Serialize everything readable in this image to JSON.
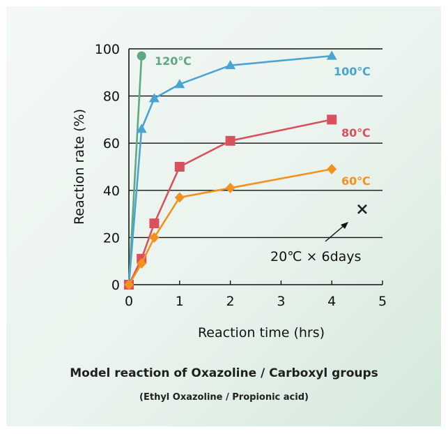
{
  "chart_data": {
    "type": "line",
    "xlabel": "Reaction time (hrs)",
    "ylabel": "Reaction rate (%)",
    "xlim": [
      0,
      5
    ],
    "ylim": [
      0,
      100
    ],
    "xticks": [
      "0",
      "1",
      "2",
      "3",
      "4",
      "5"
    ],
    "yticks": [
      "0",
      "20",
      "40",
      "60",
      "80",
      "100"
    ],
    "horizontal_grid": true,
    "series": [
      {
        "name": "120℃",
        "color": "#5fa883",
        "marker": "circle",
        "x": [
          0,
          0.25
        ],
        "y": [
          0,
          97
        ]
      },
      {
        "name": "100℃",
        "color": "#4aa3d1",
        "marker": "triangle",
        "x": [
          0,
          0.25,
          0.5,
          1,
          2,
          4
        ],
        "y": [
          0,
          66,
          79,
          85,
          93,
          97
        ]
      },
      {
        "name": "80℃",
        "color": "#d9505e",
        "marker": "square",
        "x": [
          0,
          0.25,
          0.5,
          1,
          2,
          4
        ],
        "y": [
          0,
          11,
          26,
          50,
          61,
          70
        ]
      },
      {
        "name": "60℃",
        "color": "#f2921e",
        "marker": "diamond",
        "x": [
          0,
          0.25,
          0.5,
          1,
          2,
          4
        ],
        "y": [
          0,
          9,
          20,
          37,
          41,
          49
        ]
      }
    ],
    "extra_point": {
      "label": "20℃ × 6days",
      "x": 4.6,
      "y": 32,
      "marker": "cross",
      "color": "#222222"
    }
  },
  "caption": {
    "title": "Model reaction of Oxazoline / Carboxyl groups",
    "subtitle": "(Ethyl Oxazoline / Propionic acid)"
  }
}
